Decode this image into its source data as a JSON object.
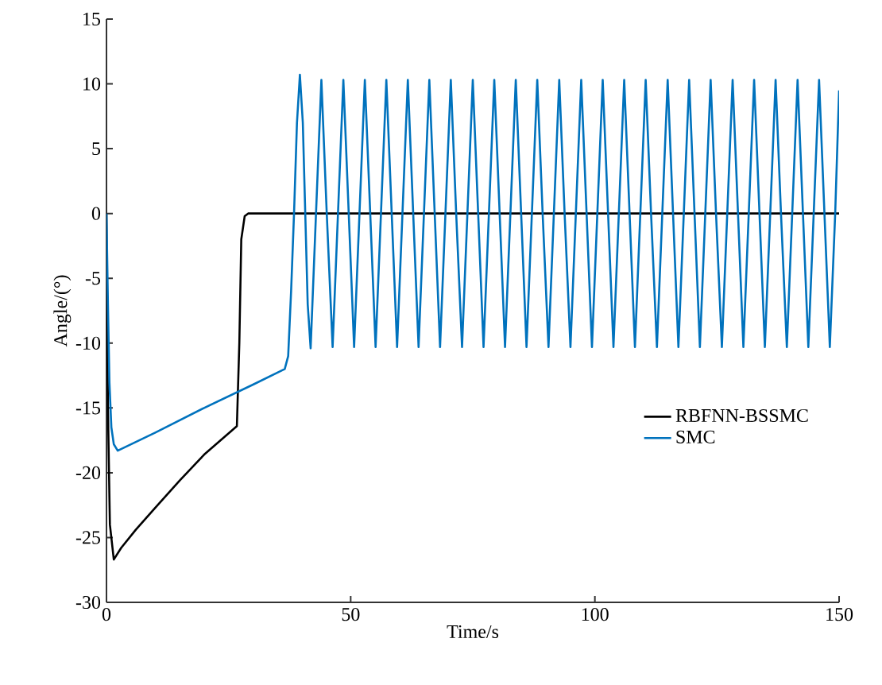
{
  "chart_data": {
    "type": "line",
    "xlabel": "Time/s",
    "ylabel": "Angle/(°)",
    "xlim": [
      0,
      150
    ],
    "ylim": [
      -30,
      15
    ],
    "xticks": [
      0,
      50,
      100,
      150
    ],
    "yticks": [
      -30,
      -25,
      -20,
      -15,
      -10,
      -5,
      0,
      5,
      10,
      15
    ],
    "grid": false,
    "legend": "right",
    "line_style": "solid",
    "marker": "none",
    "series": [
      {
        "name": "RBFNN-BSSMC",
        "color": "#000000",
        "x": [
          0,
          0.3,
          0.7,
          1.5,
          3,
          6,
          10,
          15,
          20,
          26.7,
          27.2,
          27.6,
          28.3,
          29,
          150
        ],
        "values": [
          0,
          -15,
          -24,
          -26.7,
          -25.8,
          -24.4,
          -22.7,
          -20.6,
          -18.6,
          -16.4,
          -10,
          -2,
          -0.2,
          0,
          0
        ]
      },
      {
        "name": "SMC",
        "color": "#0072bd",
        "x": [
          0,
          0.3,
          0.6,
          1,
          1.5,
          2.3,
          10,
          20,
          30,
          36.5,
          37.2,
          37.8,
          38.4,
          39,
          39.6,
          40.2,
          40.7,
          41.2,
          41.8,
          42.9,
          44.0,
          45.1,
          46.3,
          47.4,
          48.5,
          49.6,
          50.7,
          51.8,
          52.9,
          54.0,
          55.1,
          56.2,
          57.3,
          58.4,
          59.5,
          60.6,
          61.7,
          62.8,
          63.9,
          65.0,
          66.1,
          67.2,
          68.3,
          69.4,
          70.5,
          71.6,
          72.8,
          73.9,
          75.0,
          76.1,
          77.2,
          78.3,
          79.4,
          80.5,
          81.6,
          82.7,
          83.8,
          84.9,
          86.0,
          87.1,
          88.2,
          89.3,
          90.5,
          91.6,
          92.7,
          93.8,
          95.0,
          96.1,
          97.2,
          98.3,
          99.4,
          100.5,
          101.6,
          102.7,
          103.8,
          104.9,
          106.0,
          107.1,
          108.2,
          109.3,
          110.4,
          111.5,
          112.7,
          113.8,
          114.9,
          116.0,
          117.1,
          118.2,
          119.3,
          120.4,
          121.5,
          122.6,
          123.7,
          124.8,
          126.0,
          127.1,
          128.2,
          129.3,
          130.4,
          131.5,
          132.6,
          133.7,
          134.8,
          135.9,
          137.0,
          138.1,
          139.3,
          140.4,
          141.5,
          142.6,
          143.7,
          144.8,
          145.9,
          147.0,
          148.1,
          149.2,
          150
        ],
        "values": [
          0,
          -7,
          -13,
          -16.5,
          -17.8,
          -18.3,
          -16.9,
          -15.0,
          -13.2,
          -12,
          -11,
          -6,
          0,
          7,
          10.7,
          7,
          0,
          -7,
          -10.4,
          0,
          10.3,
          0,
          -10.3,
          0,
          10.3,
          0,
          -10.3,
          0,
          10.3,
          0,
          -10.3,
          0,
          10.3,
          0,
          -10.3,
          0,
          10.3,
          0,
          -10.3,
          0,
          10.3,
          0,
          -10.3,
          0,
          10.3,
          0,
          -10.3,
          0,
          10.3,
          0,
          -10.3,
          0,
          10.3,
          0,
          -10.3,
          0,
          10.3,
          0,
          -10.3,
          0,
          10.3,
          0,
          -10.3,
          0,
          10.3,
          0,
          -10.3,
          0,
          10.3,
          0,
          -10.3,
          0,
          10.3,
          0,
          -10.3,
          0,
          10.3,
          0,
          -10.3,
          0,
          10.3,
          0,
          -10.3,
          0,
          10.3,
          0,
          -10.3,
          0,
          10.3,
          0,
          -10.3,
          0,
          10.3,
          0,
          -10.3,
          0,
          10.3,
          0,
          -10.3,
          0,
          10.3,
          0,
          -10.3,
          0,
          10.3,
          0,
          -10.3,
          0,
          10.3,
          0,
          -10.3,
          0,
          10.3,
          0,
          -10.3,
          0,
          9.5
        ]
      }
    ]
  }
}
